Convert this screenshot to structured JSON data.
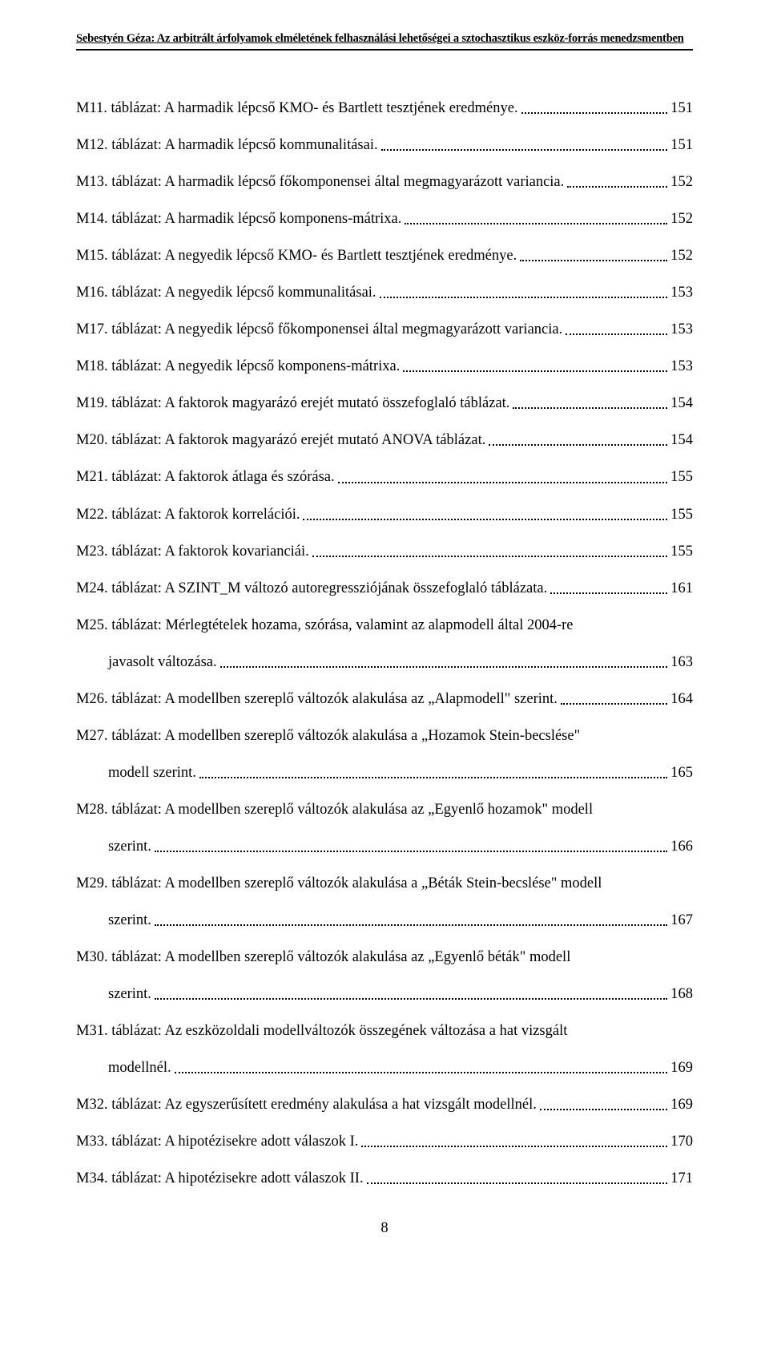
{
  "header": "Sebestyén Géza: Az arbitrált árfolyamok elméletének felhasználási lehetőségei a sztochasztikus eszköz-forrás menedzsmentben",
  "entries": [
    {
      "label": "M11. táblázat: A harmadik lépcső KMO- és Bartlett tesztjének eredménye.",
      "page": "151"
    },
    {
      "label": "M12. táblázat: A harmadik lépcső kommunalitásai.",
      "page": "151"
    },
    {
      "label": "M13. táblázat: A harmadik lépcső főkomponensei által megmagyarázott variancia.",
      "page": "152"
    },
    {
      "label": "M14. táblázat: A harmadik lépcső komponens-mátrixa.",
      "page": "152"
    },
    {
      "label": "M15. táblázat: A negyedik lépcső KMO- és Bartlett tesztjének eredménye.",
      "page": "152"
    },
    {
      "label": "M16. táblázat: A negyedik lépcső kommunalitásai.",
      "page": "153"
    },
    {
      "label": "M17. táblázat: A negyedik lépcső főkomponensei által megmagyarázott variancia.",
      "page": "153"
    },
    {
      "label": "M18. táblázat: A negyedik lépcső komponens-mátrixa.",
      "page": "153"
    },
    {
      "label": "M19. táblázat: A faktorok magyarázó erejét mutató összefoglaló táblázat.",
      "page": "154"
    },
    {
      "label": "M20. táblázat: A faktorok magyarázó erejét mutató ANOVA táblázat.",
      "page": "154"
    },
    {
      "label": "M21. táblázat: A faktorok átlaga és szórása.",
      "page": "155"
    },
    {
      "label": "M22. táblázat: A faktorok korrelációi.",
      "page": "155"
    },
    {
      "label": "M23. táblázat: A faktorok kovarianciái.",
      "page": "155"
    },
    {
      "label": "M24. táblázat: A SZINT_M változó autoregressziójának összefoglaló táblázata.",
      "page": "161"
    },
    {
      "label1": "M25. táblázat: Mérlegtételek hozama, szórása, valamint az alapmodell által 2004-re",
      "label2": "javasolt változása.",
      "page": "163",
      "multiline": true
    },
    {
      "label": "M26. táblázat: A modellben szereplő változók alakulása az „Alapmodell\" szerint.",
      "page": "164"
    },
    {
      "label1": "M27. táblázat: A modellben szereplő változók alakulása a „Hozamok Stein-becslése\"",
      "label2": "modell szerint.",
      "page": "165",
      "multiline": true
    },
    {
      "label1": "M28. táblázat: A modellben szereplő változók alakulása az „Egyenlő hozamok\" modell",
      "label2": "szerint.",
      "page": "166",
      "multiline": true
    },
    {
      "label1": "M29. táblázat: A modellben szereplő változók alakulása a „Béták Stein-becslése\" modell",
      "label2": "szerint.",
      "page": "167",
      "multiline": true
    },
    {
      "label1": "M30. táblázat: A modellben szereplő változók alakulása az „Egyenlő béták\" modell",
      "label2": "szerint.",
      "page": "168",
      "multiline": true
    },
    {
      "label1": "M31. táblázat: Az eszközoldali modellváltozók összegének változása a hat vizsgált",
      "label2": "modellnél.",
      "page": "169",
      "multiline": true
    },
    {
      "label": "M32. táblázat: Az egyszerűsített eredmény alakulása a hat vizsgált modellnél.",
      "page": "169"
    },
    {
      "label": "M33. táblázat: A hipotézisekre adott válaszok I.",
      "page": "170"
    },
    {
      "label": "M34. táblázat: A hipotézisekre adott válaszok II.",
      "page": "171"
    }
  ],
  "pageNumber": "8"
}
